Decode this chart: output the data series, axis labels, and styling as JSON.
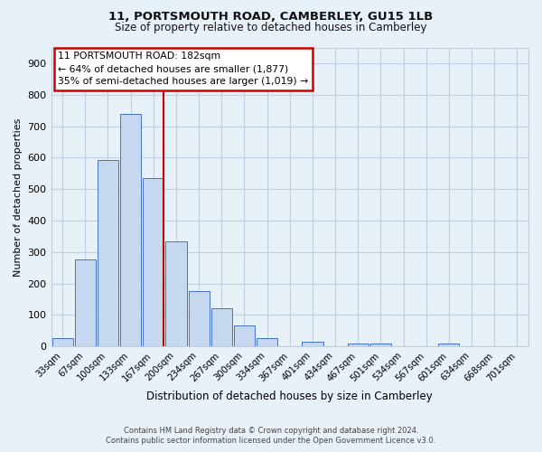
{
  "title": "11, PORTSMOUTH ROAD, CAMBERLEY, GU15 1LB",
  "subtitle": "Size of property relative to detached houses in Camberley",
  "xlabel": "Distribution of detached houses by size in Camberley",
  "ylabel": "Number of detached properties",
  "bar_labels": [
    "33sqm",
    "67sqm",
    "100sqm",
    "133sqm",
    "167sqm",
    "200sqm",
    "234sqm",
    "267sqm",
    "300sqm",
    "334sqm",
    "367sqm",
    "401sqm",
    "434sqm",
    "467sqm",
    "501sqm",
    "534sqm",
    "567sqm",
    "601sqm",
    "634sqm",
    "668sqm",
    "701sqm"
  ],
  "bar_values": [
    27,
    275,
    592,
    740,
    535,
    335,
    175,
    120,
    68,
    25,
    0,
    15,
    0,
    8,
    8,
    0,
    0,
    10,
    0,
    0,
    0
  ],
  "bar_color": "#c5d8f0",
  "bar_edge_color": "#4472c4",
  "annotation_title": "11 PORTSMOUTH ROAD: 182sqm",
  "annotation_line1": "← 64% of detached houses are smaller (1,877)",
  "annotation_line2": "35% of semi-detached houses are larger (1,019) →",
  "annotation_box_color": "#ffffff",
  "annotation_box_edge": "#cc0000",
  "vline_color": "#cc0000",
  "vline_x": 4.45,
  "ylim": [
    0,
    950
  ],
  "yticks": [
    0,
    100,
    200,
    300,
    400,
    500,
    600,
    700,
    800,
    900
  ],
  "grid_color": "#c0d0e0",
  "bg_color": "#e8f0f8",
  "footer1": "Contains HM Land Registry data © Crown copyright and database right 2024.",
  "footer2": "Contains public sector information licensed under the Open Government Licence v3.0."
}
